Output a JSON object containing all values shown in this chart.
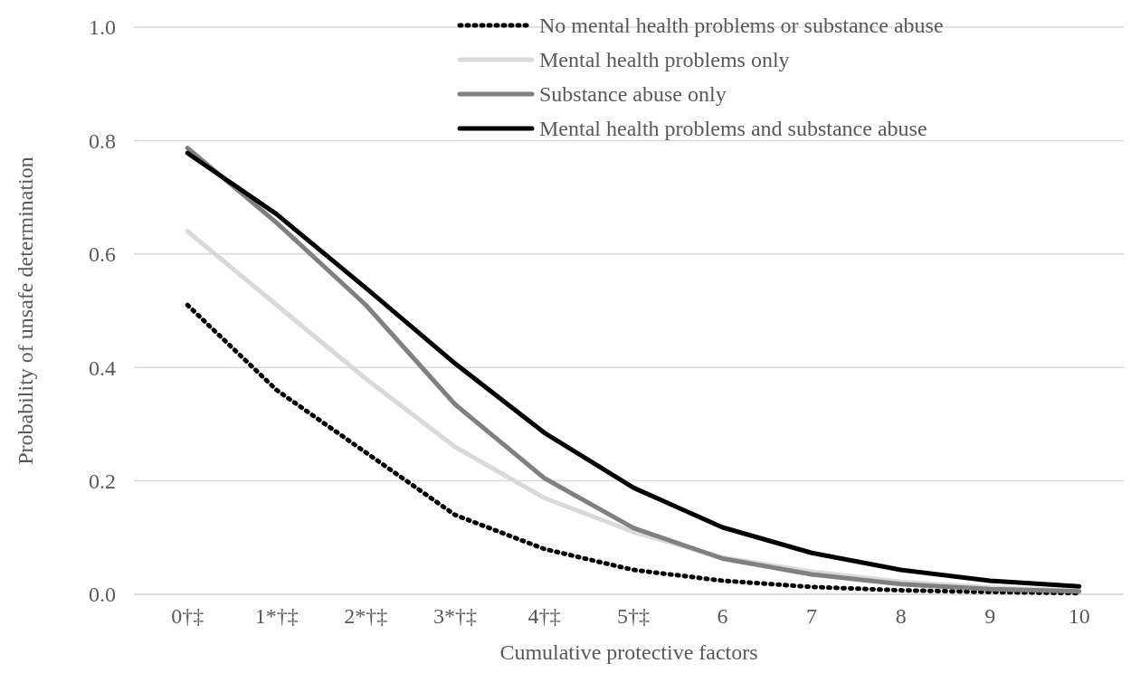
{
  "chart_data": {
    "type": "line",
    "xlabel": "Cumulative protective factors",
    "ylabel": "Probability of unsafe determination",
    "categories": [
      "0†‡",
      "1*†‡",
      "2*†‡",
      "3*†‡",
      "4†‡",
      "5†‡",
      "6",
      "7",
      "8",
      "9",
      "10"
    ],
    "series": [
      {
        "name": "No mental health problems or substance abuse",
        "color": "#000000",
        "line_style": "dotted",
        "values": [
          0.51,
          0.36,
          0.25,
          0.14,
          0.08,
          0.043,
          0.024,
          0.013,
          0.007,
          0.004,
          0.002
        ]
      },
      {
        "name": "Mental health problems only",
        "color": "#d9d9d9",
        "line_style": "solid",
        "values": [
          0.64,
          0.51,
          0.38,
          0.26,
          0.17,
          0.11,
          0.065,
          0.04,
          0.022,
          0.012,
          0.006
        ]
      },
      {
        "name": "Substance abuse only",
        "color": "#808080",
        "line_style": "solid",
        "values": [
          0.787,
          0.655,
          0.51,
          0.335,
          0.205,
          0.117,
          0.063,
          0.035,
          0.018,
          0.009,
          0.005
        ]
      },
      {
        "name": "Mental health problems and substance abuse",
        "color": "#000000",
        "line_style": "solid",
        "values": [
          0.778,
          0.67,
          0.54,
          0.407,
          0.285,
          0.188,
          0.118,
          0.073,
          0.043,
          0.024,
          0.014
        ]
      }
    ],
    "ylim": [
      0,
      1
    ],
    "yticks": [
      {
        "value": 0,
        "label": "0.0"
      },
      {
        "value": 0.2,
        "label": "0.2"
      },
      {
        "value": 0.4,
        "label": "0.4"
      },
      {
        "value": 0.6,
        "label": "0.6"
      },
      {
        "value": 0.8,
        "label": "0.8"
      },
      {
        "value": 1,
        "label": "1.0"
      }
    ],
    "grid": "y",
    "legend": "top right",
    "marker": "none"
  }
}
